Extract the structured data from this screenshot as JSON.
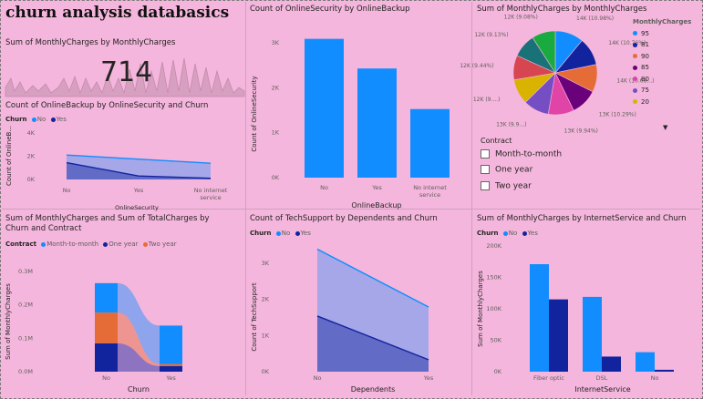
{
  "dashboard": {
    "title": "churn analysis databasics"
  },
  "colors": {
    "no": "#118dff",
    "yes": "#12239e",
    "month": "#118dff",
    "one": "#12239e",
    "two": "#e66c37"
  },
  "card": {
    "title": "Sum of MonthlyCharges by MonthlyCharges",
    "value": "714"
  },
  "chart_data": [
    {
      "id": "online-backup-area",
      "type": "area",
      "title": "Count of OnlineBackup by OnlineSecurity and Churn",
      "legend_title": "Churn",
      "categories": [
        "No",
        "Yes",
        "No internet service"
      ],
      "series": [
        {
          "name": "No",
          "values": [
            2100,
            1750,
            1400
          ]
        },
        {
          "name": "Yes",
          "values": [
            1450,
            300,
            100
          ]
        }
      ],
      "y_ticks": [
        "4K",
        "2K",
        "0K"
      ],
      "ylim": [
        0,
        4000
      ],
      "xlabel": "OnlineSecurity",
      "ylabel": "Count of OnlineB..."
    },
    {
      "id": "security-bar",
      "type": "bar",
      "title": "Count of OnlineSecurity by OnlineBackup",
      "categories": [
        "No",
        "Yes",
        "No internet service"
      ],
      "values": [
        3088,
        2429,
        1526
      ],
      "y_ticks": [
        "3K",
        "2K",
        "1K",
        "0K"
      ],
      "ylim": [
        0,
        3200
      ],
      "xlabel": "OnlineBackup",
      "ylabel": "Count of OnlineSecurity"
    },
    {
      "id": "monthly-pie",
      "type": "pie",
      "title": "Sum of MonthlyCharges by MonthlyCharges",
      "legend_title": "MonthlyCharges",
      "legend": [
        {
          "label": "95",
          "color": "#118dff"
        },
        {
          "label": "81",
          "color": "#12239e"
        },
        {
          "label": "90",
          "color": "#e66c37"
        },
        {
          "label": "85",
          "color": "#6b007b"
        },
        {
          "label": "80",
          "color": "#e044a7"
        },
        {
          "label": "75",
          "color": "#744ec2"
        },
        {
          "label": "20",
          "color": "#d9b300"
        }
      ],
      "slices": [
        {
          "value": 10.98,
          "color": "#118dff",
          "label": "14K (10.98%)"
        },
        {
          "value": 10.76,
          "color": "#12239e",
          "label": "14K (10.76%)"
        },
        {
          "value": 10.68,
          "color": "#e66c37",
          "label": "14K (10.68...)"
        },
        {
          "value": 10.29,
          "color": "#6b007b",
          "label": "13K (10.29%)"
        },
        {
          "value": 9.94,
          "color": "#e044a7",
          "label": "13K (9.94%)"
        },
        {
          "value": 9.9,
          "color": "#744ec2",
          "label": "13K (9.9...)"
        },
        {
          "value": 9.7,
          "color": "#d9b300",
          "label": "12K (9....)"
        },
        {
          "value": 9.44,
          "color": "#d64550",
          "label": "12K (9.44%)"
        },
        {
          "value": 9.13,
          "color": "#197278",
          "label": "12K (9.13%)"
        },
        {
          "value": 9.08,
          "color": "#1aab40",
          "label": "12K (9.08%)"
        }
      ]
    },
    {
      "id": "ribbon-chart",
      "type": "bar",
      "title": "Sum of MonthlyCharges and Sum of TotalCharges by Churn and Contract",
      "legend_title": "Contract",
      "categories": [
        "No",
        "Yes"
      ],
      "series": [
        {
          "name": "Month-to-month",
          "values": [
            0.088,
            0.115
          ]
        },
        {
          "name": "One year",
          "values": [
            0.085,
            0.017
          ]
        },
        {
          "name": "Two year",
          "values": [
            0.092,
            0.006
          ]
        }
      ],
      "y_ticks": [
        "0.3M",
        "0.2M",
        "0.1M",
        "0.0M"
      ],
      "ylim": [
        0,
        0.3
      ],
      "xlabel": "Churn",
      "ylabel": "Sum of MonthlyCharges"
    },
    {
      "id": "techsupport-area",
      "type": "area",
      "title": "Count of TechSupport by Dependents and Churn",
      "legend_title": "Churn",
      "categories": [
        "No",
        "Yes"
      ],
      "series": [
        {
          "name": "No",
          "values": [
            3390,
            1790
          ]
        },
        {
          "name": "Yes",
          "values": [
            1540,
            330
          ]
        }
      ],
      "y_ticks": [
        "3K",
        "2K",
        "1K",
        "0K"
      ],
      "ylim": [
        0,
        3500
      ],
      "xlabel": "Dependents",
      "ylabel": "Count of TechSupport"
    },
    {
      "id": "internet-bar",
      "type": "bar",
      "title": "Sum of MonthlyCharges by InternetService and Churn",
      "legend_title": "Churn",
      "categories": [
        "Fiber optic",
        "DSL",
        "No"
      ],
      "series": [
        {
          "name": "No",
          "values": [
            171000,
            119000,
            31000
          ]
        },
        {
          "name": "Yes",
          "values": [
            115000,
            24000,
            3000
          ]
        }
      ],
      "y_ticks": [
        "200K",
        "150K",
        "100K",
        "50K",
        "0K"
      ],
      "ylim": [
        0,
        200000
      ],
      "xlabel": "InternetService",
      "ylabel": "Sum of MonthlyCharges"
    }
  ],
  "slicer": {
    "title": "Contract",
    "options": [
      "Month-to-month",
      "One year",
      "Two year"
    ]
  }
}
